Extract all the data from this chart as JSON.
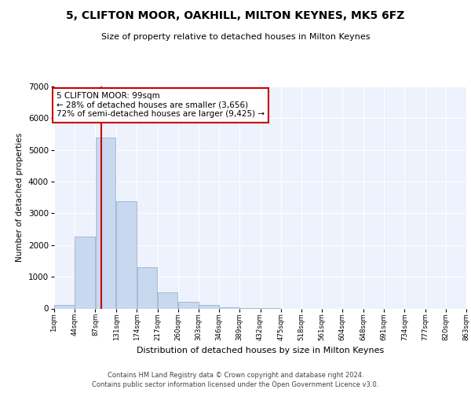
{
  "title": "5, CLIFTON MOOR, OAKHILL, MILTON KEYNES, MK5 6FZ",
  "subtitle": "Size of property relative to detached houses in Milton Keynes",
  "xlabel": "Distribution of detached houses by size in Milton Keynes",
  "ylabel": "Number of detached properties",
  "bar_color": "#c8d8ee",
  "bar_edgecolor": "#9ab4d0",
  "background_color": "#edf2fc",
  "grid_color": "#ffffff",
  "property_line_color": "#cc0000",
  "annotation_text": "5 CLIFTON MOOR: 99sqm\n← 28% of detached houses are smaller (3,656)\n72% of semi-detached houses are larger (9,425) →",
  "footnote": "Contains HM Land Registry data © Crown copyright and database right 2024.\nContains public sector information licensed under the Open Government Licence v3.0.",
  "bins": [
    1,
    44,
    87,
    131,
    174,
    217,
    260,
    303,
    346,
    389,
    432,
    475,
    518,
    561,
    604,
    648,
    691,
    734,
    777,
    820,
    863
  ],
  "counts": [
    100,
    2270,
    5400,
    3380,
    1300,
    500,
    200,
    100,
    30,
    8,
    3,
    0,
    0,
    0,
    0,
    0,
    0,
    0,
    0,
    0
  ],
  "ylim": [
    0,
    7000
  ],
  "yticks": [
    0,
    1000,
    2000,
    3000,
    4000,
    5000,
    6000,
    7000
  ],
  "property_sqm": 99
}
